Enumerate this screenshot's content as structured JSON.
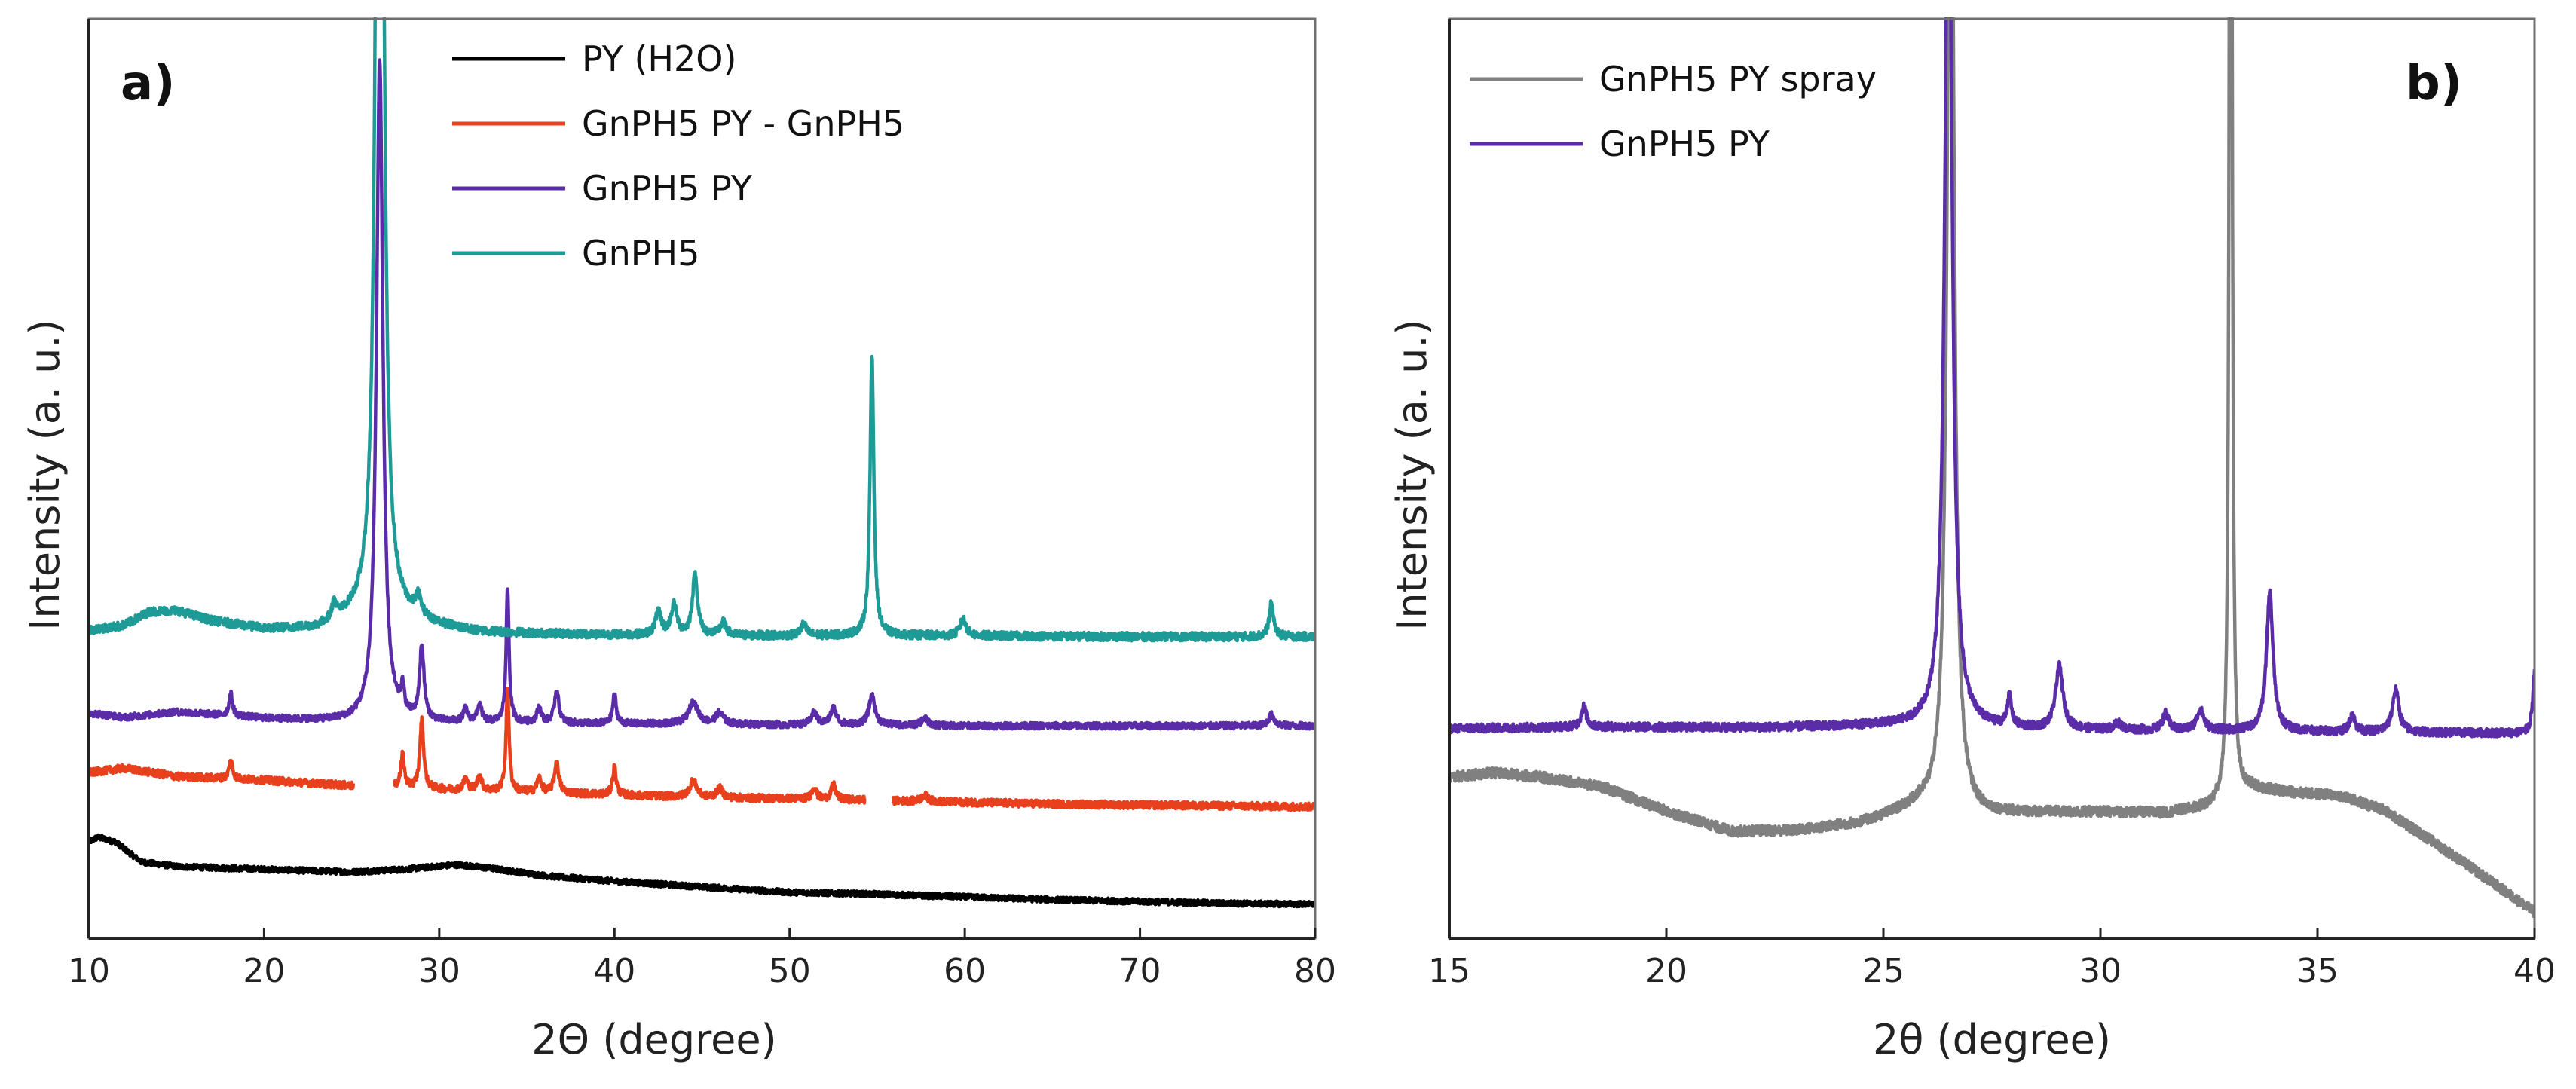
{
  "chart_data": [
    {
      "type": "line",
      "panel_label": "a)",
      "xlabel": "2Θ (degree)",
      "ylabel": "Intensity (a. u.)",
      "xlim": [
        10,
        80
      ],
      "ylim": [
        0,
        100
      ],
      "x_ticks": [
        "10",
        "20",
        "30",
        "40",
        "50",
        "60",
        "70",
        "80"
      ],
      "x_tick_values": [
        10,
        20,
        30,
        40,
        50,
        60,
        70,
        80
      ],
      "y_ticks_shown": false,
      "legend_position": "top-center",
      "series": [
        {
          "name": "PY (H2O)",
          "color": "#000000",
          "baseline": [
            [
              10,
              10.5
            ],
            [
              10.5,
              11
            ],
            [
              11.5,
              10.5
            ],
            [
              13,
              8.3
            ],
            [
              15,
              7.8
            ],
            [
              20,
              7.5
            ],
            [
              25,
              7.2
            ],
            [
              28,
              7.5
            ],
            [
              31,
              8.0
            ],
            [
              33,
              7.6
            ],
            [
              36,
              6.8
            ],
            [
              40,
              6.2
            ],
            [
              45,
              5.6
            ],
            [
              50,
              5.0
            ],
            [
              55,
              4.8
            ],
            [
              60,
              4.5
            ],
            [
              65,
              4.2
            ],
            [
              70,
              4.0
            ],
            [
              75,
              3.8
            ],
            [
              80,
              3.7
            ]
          ],
          "peaks": [],
          "noise": 0.3,
          "gaps": []
        },
        {
          "name": "GnPH5 PY -  GnPH5",
          "color": "#E8401C",
          "baseline": [
            [
              10,
              18.0
            ],
            [
              12,
              18.5
            ],
            [
              15,
              17.6
            ],
            [
              20,
              17.2
            ],
            [
              25,
              16.6
            ],
            [
              30,
              16.2
            ],
            [
              35,
              15.9
            ],
            [
              40,
              15.6
            ],
            [
              45,
              15.3
            ],
            [
              50,
              15.2
            ],
            [
              55,
              15.0
            ],
            [
              60,
              14.8
            ],
            [
              65,
              14.6
            ],
            [
              70,
              14.5
            ],
            [
              75,
              14.4
            ],
            [
              80,
              14.3
            ]
          ],
          "peaks": [
            [
              18.1,
              2.0,
              0.12
            ],
            [
              27.9,
              3.6,
              0.12
            ],
            [
              29.0,
              7.4,
              0.13
            ],
            [
              31.5,
              1.2,
              0.15
            ],
            [
              32.3,
              1.6,
              0.15
            ],
            [
              33.9,
              11.4,
              0.1
            ],
            [
              35.7,
              1.5,
              0.15
            ],
            [
              36.7,
              3.3,
              0.15
            ],
            [
              40.0,
              3.0,
              0.12
            ],
            [
              44.5,
              1.8,
              0.25
            ],
            [
              46.0,
              1.0,
              0.2
            ],
            [
              51.4,
              1.3,
              0.15
            ],
            [
              52.5,
              1.6,
              0.15
            ],
            [
              57.7,
              0.7,
              0.2
            ]
          ],
          "noise": 0.4,
          "gaps": [
            [
              25.1,
              27.4
            ],
            [
              54.3,
              55.9
            ]
          ]
        },
        {
          "name": "GnPH5 PY",
          "color": "#5B2CA8",
          "baseline": [
            [
              10,
              24.5
            ],
            [
              12,
              24.0
            ],
            [
              15,
              24.6
            ],
            [
              20,
              23.9
            ],
            [
              25,
              23.5
            ],
            [
              30,
              23.4
            ],
            [
              35,
              23.4
            ],
            [
              40,
              23.3
            ],
            [
              45,
              23.3
            ],
            [
              50,
              23.2
            ],
            [
              55,
              23.2
            ],
            [
              60,
              23.1
            ],
            [
              70,
              23.1
            ],
            [
              80,
              23.1
            ]
          ],
          "peaks": [
            [
              18.1,
              2.4,
              0.12
            ],
            [
              26.6,
              72.0,
              0.22
            ],
            [
              27.9,
              2.6,
              0.12
            ],
            [
              29.0,
              8.0,
              0.15
            ],
            [
              31.5,
              1.4,
              0.15
            ],
            [
              32.3,
              1.9,
              0.15
            ],
            [
              33.9,
              14.6,
              0.1
            ],
            [
              35.7,
              1.6,
              0.15
            ],
            [
              36.7,
              3.6,
              0.15
            ],
            [
              40.0,
              3.2,
              0.12
            ],
            [
              44.5,
              2.4,
              0.3
            ],
            [
              46.0,
              1.2,
              0.25
            ],
            [
              51.4,
              1.3,
              0.2
            ],
            [
              52.5,
              1.8,
              0.2
            ],
            [
              54.7,
              3.2,
              0.2
            ],
            [
              57.7,
              0.8,
              0.2
            ],
            [
              77.5,
              1.2,
              0.2
            ]
          ],
          "noise": 0.35,
          "gaps": []
        },
        {
          "name": "GnPH5",
          "color": "#1E9B96",
          "baseline": [
            [
              10,
              33.5
            ],
            [
              12,
              34.0
            ],
            [
              13.5,
              35.5
            ],
            [
              15,
              35.6
            ],
            [
              17,
              34.5
            ],
            [
              20,
              33.6
            ],
            [
              23,
              33.6
            ],
            [
              25,
              34.6
            ],
            [
              28,
              34.4
            ],
            [
              32,
              33.3
            ],
            [
              36,
              33.1
            ],
            [
              40,
              33.0
            ],
            [
              45,
              32.9
            ],
            [
              50,
              32.9
            ],
            [
              60,
              32.9
            ],
            [
              70,
              32.8
            ],
            [
              80,
              32.8
            ]
          ],
          "peaks": [
            [
              24.0,
              1.8,
              0.15
            ],
            [
              26.6,
              180.0,
              0.2
            ],
            [
              28.8,
              2.0,
              0.2
            ],
            [
              42.5,
              2.4,
              0.2
            ],
            [
              43.4,
              3.2,
              0.2
            ],
            [
              44.6,
              6.5,
              0.18
            ],
            [
              46.2,
              1.4,
              0.2
            ],
            [
              50.8,
              1.2,
              0.2
            ],
            [
              54.7,
              30.5,
              0.13
            ],
            [
              59.9,
              1.8,
              0.2
            ],
            [
              77.5,
              3.6,
              0.15
            ]
          ],
          "noise": 0.45,
          "gaps": []
        }
      ]
    },
    {
      "type": "line",
      "panel_label": "b)",
      "xlabel": "2θ (degree)",
      "ylabel": "Intensity (a. u.)",
      "xlim": [
        15,
        40
      ],
      "ylim": [
        0,
        100
      ],
      "x_ticks": [
        "15",
        "20",
        "25",
        "30",
        "35",
        "40"
      ],
      "x_tick_values": [
        15,
        20,
        25,
        30,
        35,
        40
      ],
      "y_ticks_shown": false,
      "legend_position": "top-left",
      "series": [
        {
          "name": "GnPH5 PY spray",
          "color": "#808080",
          "baseline": [
            [
              15,
              17.5
            ],
            [
              16,
              18.0
            ],
            [
              17,
              17.6
            ],
            [
              18.5,
              16.5
            ],
            [
              20,
              13.8
            ],
            [
              21.5,
              11.6
            ],
            [
              23,
              11.7
            ],
            [
              24.5,
              12.5
            ],
            [
              25.8,
              14.2
            ],
            [
              27,
              13.2
            ],
            [
              28.5,
              13.6
            ],
            [
              30,
              13.7
            ],
            [
              31.5,
              13.6
            ],
            [
              32.5,
              14.2
            ],
            [
              33.5,
              16.2
            ],
            [
              34.5,
              15.8
            ],
            [
              35.5,
              15.5
            ],
            [
              36.5,
              14.0
            ],
            [
              37.5,
              11.0
            ],
            [
              38.5,
              7.8
            ],
            [
              39.5,
              4.5
            ],
            [
              40,
              2.8
            ]
          ],
          "peaks": [
            [
              26.55,
              125.0,
              0.09
            ],
            [
              33.0,
              200.0,
              0.03
            ]
          ],
          "noise": 0.55,
          "gaps": []
        },
        {
          "name": "GnPH5 PY",
          "color": "#5B2CA8",
          "baseline": [
            [
              15,
              22.8
            ],
            [
              18,
              23.0
            ],
            [
              22,
              22.9
            ],
            [
              25,
              23.1
            ],
            [
              28,
              22.7
            ],
            [
              31,
              22.6
            ],
            [
              34,
              22.5
            ],
            [
              37,
              22.4
            ],
            [
              39.8,
              22.3
            ],
            [
              40,
              22.3
            ]
          ],
          "peaks": [
            [
              18.1,
              2.2,
              0.07
            ],
            [
              26.5,
              100.0,
              0.1
            ],
            [
              27.9,
              3.2,
              0.06
            ],
            [
              29.05,
              6.8,
              0.1
            ],
            [
              30.4,
              0.7,
              0.1
            ],
            [
              31.5,
              1.8,
              0.08
            ],
            [
              32.3,
              2.2,
              0.1
            ],
            [
              33.9,
              15.0,
              0.09
            ],
            [
              35.8,
              1.9,
              0.07
            ],
            [
              36.8,
              4.6,
              0.09
            ],
            [
              40.0,
              6.5,
              0.05
            ]
          ],
          "noise": 0.45,
          "gaps": []
        }
      ]
    }
  ]
}
